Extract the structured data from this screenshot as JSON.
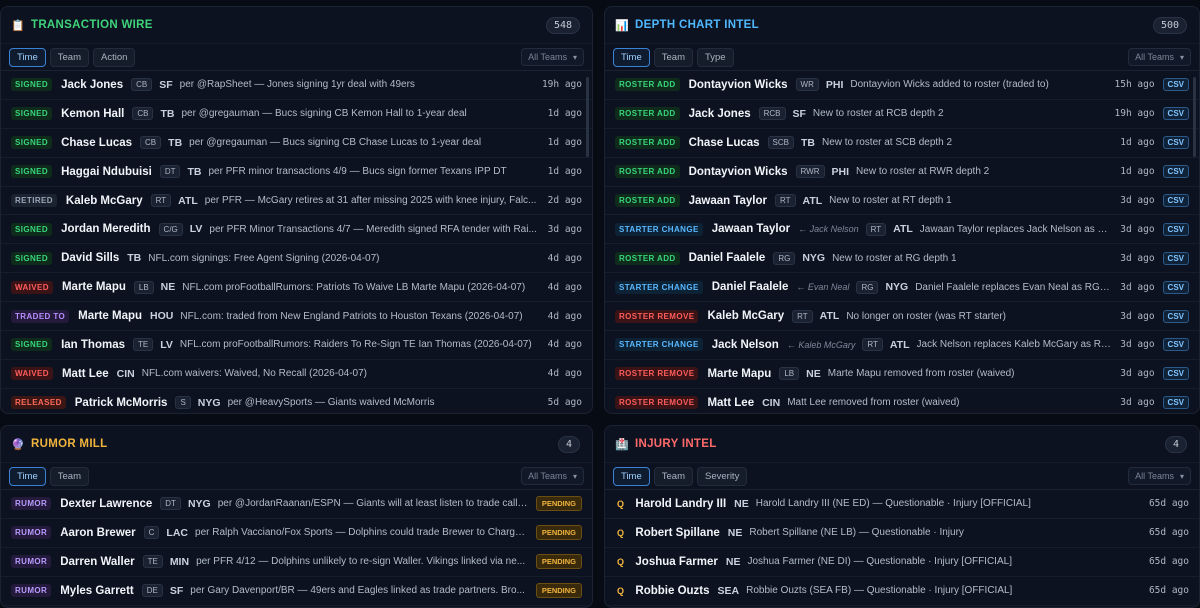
{
  "transaction_wire": {
    "title": "TRANSACTION WIRE",
    "icon": "clipboard-icon",
    "count": "548",
    "tabs": [
      "Time",
      "Team",
      "Action"
    ],
    "filter": "All Teams",
    "rows": [
      {
        "action": "SIGNED",
        "kind": "signed",
        "name": "Jack Jones",
        "pos": "CB",
        "team": "SF",
        "desc": "per @RapSheet — Jones signing 1yr deal with 49ers",
        "ago": "19h ago"
      },
      {
        "action": "SIGNED",
        "kind": "signed",
        "name": "Kemon Hall",
        "pos": "CB",
        "team": "TB",
        "desc": "per @gregauman — Bucs signing CB Kemon Hall to 1-year deal",
        "ago": "1d ago"
      },
      {
        "action": "SIGNED",
        "kind": "signed",
        "name": "Chase Lucas",
        "pos": "CB",
        "team": "TB",
        "desc": "per @gregauman — Bucs signing CB Chase Lucas to 1-year deal",
        "ago": "1d ago"
      },
      {
        "action": "SIGNED",
        "kind": "signed",
        "name": "Haggai Ndubuisi",
        "pos": "DT",
        "team": "TB",
        "desc": "per PFR minor transactions 4/9 — Bucs sign former Texans IPP DT",
        "ago": "1d ago"
      },
      {
        "action": "RETIRED",
        "kind": "retired",
        "name": "Kaleb McGary",
        "pos": "RT",
        "team": "ATL",
        "desc": "per PFR — McGary retires at 31 after missing 2025 with knee injury, Falc...",
        "ago": "2d ago"
      },
      {
        "action": "SIGNED",
        "kind": "signed",
        "name": "Jordan Meredith",
        "pos": "C/G",
        "team": "LV",
        "desc": "per PFR Minor Transactions 4/7 — Meredith signed RFA tender with Rai...",
        "ago": "3d ago"
      },
      {
        "action": "SIGNED",
        "kind": "signed",
        "name": "David Sills",
        "pos": "",
        "team": "TB",
        "desc": "NFL.com signings: Free Agent Signing (2026-04-07)",
        "ago": "4d ago"
      },
      {
        "action": "WAIVED",
        "kind": "waived",
        "name": "Marte Mapu",
        "pos": "LB",
        "team": "NE",
        "desc": "NFL.com proFootballRumors: Patriots To Waive LB Marte Mapu (2026-04-07)",
        "ago": "4d ago"
      },
      {
        "action": "TRADED TO",
        "kind": "traded",
        "name": "Marte Mapu",
        "pos": "",
        "team": "HOU",
        "desc": "NFL.com: traded from New England Patriots to Houston Texans (2026-04-07)",
        "ago": "4d ago"
      },
      {
        "action": "SIGNED",
        "kind": "signed",
        "name": "Ian Thomas",
        "pos": "TE",
        "team": "LV",
        "desc": "NFL.com proFootballRumors: Raiders To Re-Sign TE Ian Thomas (2026-04-07)",
        "ago": "4d ago"
      },
      {
        "action": "WAIVED",
        "kind": "waived",
        "name": "Matt Lee",
        "pos": "",
        "team": "CIN",
        "desc": "NFL.com waivers: Waived, No Recall (2026-04-07)",
        "ago": "4d ago"
      },
      {
        "action": "RELEASED",
        "kind": "released",
        "name": "Patrick McMorris",
        "pos": "S",
        "team": "NYG",
        "desc": "per @HeavySports — Giants waived McMorris",
        "ago": "5d ago"
      }
    ]
  },
  "depth_chart": {
    "title": "DEPTH CHART INTEL",
    "icon": "bar-chart-icon",
    "count": "500",
    "tabs": [
      "Time",
      "Team",
      "Type"
    ],
    "filter": "All Teams",
    "csv_label": "CSV",
    "rows": [
      {
        "action": "ROSTER ADD",
        "kind": "add",
        "name": "Dontayvion Wicks",
        "prev": "",
        "pos": "WR",
        "team": "PHI",
        "desc": "Dontayvion Wicks added to roster (traded to)",
        "ago": "15h ago"
      },
      {
        "action": "ROSTER ADD",
        "kind": "add",
        "name": "Jack Jones",
        "prev": "",
        "pos": "RCB",
        "team": "SF",
        "desc": "New to roster at RCB depth 2",
        "ago": "19h ago"
      },
      {
        "action": "ROSTER ADD",
        "kind": "add",
        "name": "Chase Lucas",
        "prev": "",
        "pos": "SCB",
        "team": "TB",
        "desc": "New to roster at SCB depth 2",
        "ago": "1d ago"
      },
      {
        "action": "ROSTER ADD",
        "kind": "add",
        "name": "Dontayvion Wicks",
        "prev": "",
        "pos": "RWR",
        "team": "PHI",
        "desc": "New to roster at RWR depth 2",
        "ago": "1d ago"
      },
      {
        "action": "ROSTER ADD",
        "kind": "add",
        "name": "Jawaan Taylor",
        "prev": "",
        "pos": "RT",
        "team": "ATL",
        "desc": "New to roster at RT depth 1",
        "ago": "3d ago"
      },
      {
        "action": "STARTER CHANGE",
        "kind": "starter",
        "name": "Jawaan Taylor",
        "prev": "← Jack Nelson",
        "pos": "RT",
        "team": "ATL",
        "desc": "Jawaan Taylor replaces Jack Nelson as R...",
        "ago": "3d ago"
      },
      {
        "action": "ROSTER ADD",
        "kind": "add",
        "name": "Daniel Faalele",
        "prev": "",
        "pos": "RG",
        "team": "NYG",
        "desc": "New to roster at RG depth 1",
        "ago": "3d ago"
      },
      {
        "action": "STARTER CHANGE",
        "kind": "starter",
        "name": "Daniel Faalele",
        "prev": "← Evan Neal",
        "pos": "RG",
        "team": "NYG",
        "desc": "Daniel Faalele replaces Evan Neal as RG s...",
        "ago": "3d ago"
      },
      {
        "action": "ROSTER REMOVE",
        "kind": "remove",
        "name": "Kaleb McGary",
        "prev": "",
        "pos": "RT",
        "team": "ATL",
        "desc": "No longer on roster (was RT starter)",
        "ago": "3d ago"
      },
      {
        "action": "STARTER CHANGE",
        "kind": "starter",
        "name": "Jack Nelson",
        "prev": "← Kaleb McGary",
        "pos": "RT",
        "team": "ATL",
        "desc": "Jack Nelson replaces Kaleb McGary as RT...",
        "ago": "3d ago"
      },
      {
        "action": "ROSTER REMOVE",
        "kind": "remove",
        "name": "Marte Mapu",
        "prev": "",
        "pos": "LB",
        "team": "NE",
        "desc": "Marte Mapu removed from roster (waived)",
        "ago": "3d ago"
      },
      {
        "action": "ROSTER REMOVE",
        "kind": "remove",
        "name": "Matt Lee",
        "prev": "",
        "pos": "",
        "team": "CIN",
        "desc": "Matt Lee removed from roster (waived)",
        "ago": "3d ago"
      }
    ]
  },
  "rumor_mill": {
    "title": "RUMOR MILL",
    "icon": "crystal-ball-icon",
    "count": "4",
    "tabs": [
      "Time",
      "Team"
    ],
    "filter": "All Teams",
    "pending_label": "PENDING",
    "rows": [
      {
        "action": "RUMOR",
        "kind": "rumor",
        "name": "Dexter Lawrence",
        "pos": "DT",
        "team": "NYG",
        "desc": "per @JordanRaanan/ESPN — Giants will at least listen to trade calls..."
      },
      {
        "action": "RUMOR",
        "kind": "rumor",
        "name": "Aaron Brewer",
        "pos": "C",
        "team": "LAC",
        "desc": "per Ralph Vacciano/Fox Sports — Dolphins could trade Brewer to Charge..."
      },
      {
        "action": "RUMOR",
        "kind": "rumor",
        "name": "Darren Waller",
        "pos": "TE",
        "team": "MIN",
        "desc": "per PFR 4/12 — Dolphins unlikely to re-sign Waller. Vikings linked via ne..."
      },
      {
        "action": "RUMOR",
        "kind": "rumor",
        "name": "Myles Garrett",
        "pos": "DE",
        "team": "SF",
        "desc": "per Gary Davenport/BR — 49ers and Eagles linked as trade partners. Bro..."
      }
    ]
  },
  "injury_intel": {
    "title": "INJURY INTEL",
    "icon": "hospital-icon",
    "count": "4",
    "tabs": [
      "Time",
      "Team",
      "Severity"
    ],
    "filter": "All Teams",
    "rows": [
      {
        "action": "Q",
        "kind": "q",
        "name": "Harold Landry III",
        "team": "NE",
        "desc": "Harold Landry III (NE ED) — Questionable · Injury [OFFICIAL]",
        "ago": "65d ago"
      },
      {
        "action": "Q",
        "kind": "q",
        "name": "Robert Spillane",
        "team": "NE",
        "desc": "Robert Spillane (NE LB) — Questionable · Injury",
        "ago": "65d ago"
      },
      {
        "action": "Q",
        "kind": "q",
        "name": "Joshua Farmer",
        "team": "NE",
        "desc": "Joshua Farmer (NE DI) — Questionable · Injury [OFFICIAL]",
        "ago": "65d ago"
      },
      {
        "action": "Q",
        "kind": "q",
        "name": "Robbie Ouzts",
        "team": "SEA",
        "desc": "Robbie Ouzts (SEA FB) — Questionable · Injury [OFFICIAL]",
        "ago": "65d ago"
      }
    ]
  },
  "colors": {
    "transaction_title": "#3fd37a",
    "depth_title": "#4fb8ff",
    "rumor_title": "#f0b43c",
    "injury_title": "#ff6a6a"
  }
}
